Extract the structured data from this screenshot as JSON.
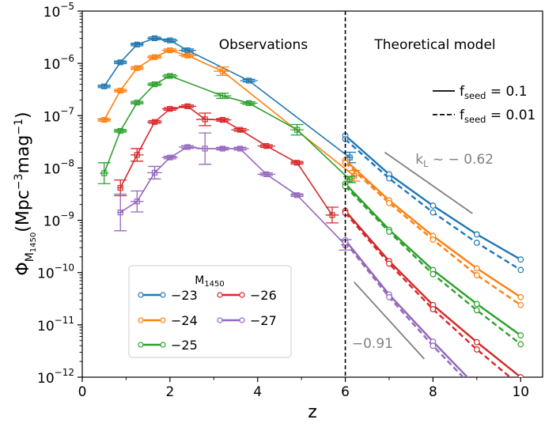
{
  "chart_data": {
    "type": "line",
    "x_label": "z",
    "y_label_base": "Φ",
    "y_label_sub": "M",
    "y_label_subsub": "1450",
    "y_label_units_prefix": "(Mpc",
    "y_label_units_exp1": "−3",
    "y_label_units_mid": "mag",
    "y_label_units_exp2": "−1",
    "y_label_units_suffix": ")",
    "xlim": [
      0,
      10.5
    ],
    "ylim_log10": [
      -12,
      -5
    ],
    "x_ticks": [
      0,
      2,
      4,
      6,
      8,
      10
    ],
    "x_tick_labels": [
      "0",
      "2",
      "4",
      "6",
      "8",
      "10"
    ],
    "y_ticks_log10": [
      -12,
      -11,
      -10,
      -9,
      -8,
      -7,
      -6,
      -5
    ],
    "y_tick_labels": [
      {
        "base": "10",
        "exp": "−12"
      },
      {
        "base": "10",
        "exp": "−11"
      },
      {
        "base": "10",
        "exp": "−10"
      },
      {
        "base": "10",
        "exp": "−9"
      },
      {
        "base": "10",
        "exp": "−8"
      },
      {
        "base": "10",
        "exp": "−7"
      },
      {
        "base": "10",
        "exp": "−6"
      },
      {
        "base": "10",
        "exp": "−5"
      }
    ],
    "divider_z": 6,
    "region_labels": {
      "left": "Observations",
      "right": "Theoretical model"
    },
    "model_legend": {
      "solid": {
        "base": "f",
        "sub": "seed",
        "value": " = 0.1"
      },
      "dashed": {
        "base": "f",
        "sub": "seed",
        "value": " = 0.01"
      }
    },
    "slope_annotations": [
      {
        "text_base": "k",
        "text_sub": "L",
        "text_value": " ~ − 0.62",
        "line": [
          [
            6.9,
            -7.7
          ],
          [
            8.9,
            -8.87
          ]
        ],
        "label_at": [
          7.6,
          -7.83
        ]
      },
      {
        "text_value": "−0.91",
        "line": [
          [
            6.2,
            -10.18
          ],
          [
            7.8,
            -11.65
          ]
        ],
        "label_at": [
          6.15,
          -11.35
        ]
      }
    ],
    "legend_title": {
      "base": "M",
      "sub": "1450"
    },
    "legend_order": [
      0,
      3,
      1,
      4,
      2
    ],
    "series": [
      {
        "name": "−23",
        "color": "#1f77b4",
        "obs": [
          {
            "z": 0.5,
            "logphi": -6.44,
            "xerr": 0.15
          },
          {
            "z": 0.87,
            "logphi": -5.98,
            "xerr": 0.15
          },
          {
            "z": 1.25,
            "logphi": -5.64,
            "xerr": 0.15
          },
          {
            "z": 1.65,
            "logphi": -5.52,
            "xerr": 0.17
          },
          {
            "z": 2.0,
            "logphi": -5.56,
            "xerr": 0.18
          },
          {
            "z": 2.4,
            "logphi": -5.75,
            "xerr": 0.2
          },
          {
            "z": 3.8,
            "logphi": -6.33,
            "xerr": 0.2
          },
          {
            "z": 6.1,
            "logphi": -7.8,
            "xerr": 0.08,
            "yerr": 0.1
          }
        ],
        "model_solid": [
          {
            "z": 6.0,
            "logphi": -7.38
          },
          {
            "z": 7.0,
            "logphi": -8.12
          },
          {
            "z": 8.0,
            "logphi": -8.72
          },
          {
            "z": 9.0,
            "logphi": -9.27
          },
          {
            "z": 10.0,
            "logphi": -9.75
          }
        ],
        "model_dashed": [
          {
            "z": 6.0,
            "logphi": -7.45
          },
          {
            "z": 7.0,
            "logphi": -8.2
          },
          {
            "z": 8.0,
            "logphi": -8.85
          },
          {
            "z": 9.0,
            "logphi": -9.43
          },
          {
            "z": 10.0,
            "logphi": -9.95
          }
        ]
      },
      {
        "name": "−24",
        "color": "#ff7f0e",
        "obs": [
          {
            "z": 0.5,
            "logphi": -7.08,
            "xerr": 0.15
          },
          {
            "z": 0.87,
            "logphi": -6.52,
            "xerr": 0.15
          },
          {
            "z": 1.25,
            "logphi": -6.09,
            "xerr": 0.15
          },
          {
            "z": 1.65,
            "logphi": -5.88,
            "xerr": 0.17
          },
          {
            "z": 2.0,
            "logphi": -5.75,
            "xerr": 0.18
          },
          {
            "z": 2.4,
            "logphi": -5.85,
            "xerr": 0.2
          },
          {
            "z": 3.2,
            "logphi": -6.15,
            "xerr": 0.2,
            "yerr": 0.08
          },
          {
            "z": 6.2,
            "logphi": -8.15,
            "xerr": 0.08,
            "yerr": 0.1
          }
        ],
        "model_solid": [
          {
            "z": 6.0,
            "logphi": -7.85
          },
          {
            "z": 7.0,
            "logphi": -8.62
          },
          {
            "z": 8.0,
            "logphi": -9.3
          },
          {
            "z": 9.0,
            "logphi": -9.92
          },
          {
            "z": 10.0,
            "logphi": -10.47
          }
        ],
        "model_dashed": [
          {
            "z": 6.0,
            "logphi": -7.9
          },
          {
            "z": 7.0,
            "logphi": -8.67
          },
          {
            "z": 8.0,
            "logphi": -9.37
          },
          {
            "z": 9.0,
            "logphi": -10.05
          },
          {
            "z": 10.0,
            "logphi": -10.62
          }
        ]
      },
      {
        "name": "−25",
        "color": "#2ca02c",
        "obs": [
          {
            "z": 0.5,
            "logphi": -8.1,
            "xerr": 0.1,
            "yerr": 0.2
          },
          {
            "z": 0.87,
            "logphi": -7.29,
            "xerr": 0.15
          },
          {
            "z": 1.25,
            "logphi": -6.75,
            "xerr": 0.15
          },
          {
            "z": 1.65,
            "logphi": -6.4,
            "xerr": 0.17
          },
          {
            "z": 2.0,
            "logphi": -6.24,
            "xerr": 0.18
          },
          {
            "z": 3.2,
            "logphi": -6.62,
            "xerr": 0.2,
            "yerr": 0.05
          },
          {
            "z": 3.8,
            "logphi": -6.76,
            "xerr": 0.2
          },
          {
            "z": 4.9,
            "logphi": -7.27,
            "xerr": 0.15,
            "yerr": 0.1
          },
          {
            "z": 6.1,
            "logphi": -8.22,
            "xerr": 0.08,
            "yerr": 0.06
          }
        ],
        "model_solid": [
          {
            "z": 6.0,
            "logphi": -8.3
          },
          {
            "z": 7.0,
            "logphi": -9.18
          },
          {
            "z": 8.0,
            "logphi": -9.95
          },
          {
            "z": 9.0,
            "logphi": -10.6
          },
          {
            "z": 10.0,
            "logphi": -11.2
          }
        ],
        "model_dashed": [
          {
            "z": 6.0,
            "logphi": -8.35
          },
          {
            "z": 7.0,
            "logphi": -9.22
          },
          {
            "z": 8.0,
            "logphi": -10.03
          },
          {
            "z": 9.0,
            "logphi": -10.72
          },
          {
            "z": 10.0,
            "logphi": -11.37
          }
        ]
      },
      {
        "name": "−26",
        "color": "#d62728",
        "obs": [
          {
            "z": 0.87,
            "logphi": -8.38,
            "xerr": 0.07,
            "yerr": 0.15
          },
          {
            "z": 1.25,
            "logphi": -7.75,
            "xerr": 0.15,
            "yerr": 0.12
          },
          {
            "z": 1.65,
            "logphi": -7.12,
            "xerr": 0.17
          },
          {
            "z": 2.0,
            "logphi": -6.87,
            "xerr": 0.18
          },
          {
            "z": 2.4,
            "logphi": -6.82,
            "xerr": 0.2
          },
          {
            "z": 2.8,
            "logphi": -7.07,
            "xerr": 0.2,
            "yerr": 0.12
          },
          {
            "z": 3.2,
            "logphi": -7.08,
            "xerr": 0.2
          },
          {
            "z": 3.6,
            "logphi": -7.27,
            "xerr": 0.2
          },
          {
            "z": 4.2,
            "logphi": -7.58,
            "xerr": 0.2
          },
          {
            "z": 4.9,
            "logphi": -7.9,
            "xerr": 0.15
          },
          {
            "z": 5.7,
            "logphi": -8.9,
            "xerr": 0.15,
            "yerr": 0.15
          }
        ],
        "model_solid": [
          {
            "z": 6.0,
            "logphi": -8.82
          },
          {
            "z": 7.0,
            "logphi": -9.78
          },
          {
            "z": 8.0,
            "logphi": -10.62
          },
          {
            "z": 9.0,
            "logphi": -11.33
          },
          {
            "z": 10.0,
            "logphi": -12.0
          }
        ],
        "model_dashed": [
          {
            "z": 6.0,
            "logphi": -8.86
          },
          {
            "z": 7.0,
            "logphi": -9.83
          },
          {
            "z": 8.0,
            "logphi": -10.7
          },
          {
            "z": 9.0,
            "logphi": -11.47
          },
          {
            "z": 9.9,
            "logphi": -12.1
          }
        ]
      },
      {
        "name": "−27",
        "color": "#9467bd",
        "obs": [
          {
            "z": 0.87,
            "logphi": -8.85,
            "xerr": 0.07,
            "yerr": 0.35
          },
          {
            "z": 1.25,
            "logphi": -8.64,
            "xerr": 0.15,
            "yerr": 0.2
          },
          {
            "z": 1.65,
            "logphi": -8.09,
            "xerr": 0.17,
            "yerr": 0.12
          },
          {
            "z": 2.0,
            "logphi": -7.8,
            "xerr": 0.18
          },
          {
            "z": 2.4,
            "logphi": -7.6,
            "xerr": 0.2
          },
          {
            "z": 2.8,
            "logphi": -7.63,
            "xerr": 0.2,
            "yerr": 0.3
          },
          {
            "z": 3.2,
            "logphi": -7.63,
            "xerr": 0.2
          },
          {
            "z": 3.6,
            "logphi": -7.63,
            "xerr": 0.2
          },
          {
            "z": 4.2,
            "logphi": -8.12,
            "xerr": 0.2
          },
          {
            "z": 4.9,
            "logphi": -8.52,
            "xerr": 0.15
          },
          {
            "z": 6.0,
            "logphi": -9.47,
            "xerr": 0.1,
            "yerr": 0.1
          }
        ],
        "model_solid": [
          {
            "z": 6.0,
            "logphi": -9.38
          },
          {
            "z": 7.0,
            "logphi": -10.42
          },
          {
            "z": 8.0,
            "logphi": -11.32
          },
          {
            "z": 8.9,
            "logphi": -12.1
          }
        ],
        "model_dashed": [
          {
            "z": 6.0,
            "logphi": -9.42
          },
          {
            "z": 7.0,
            "logphi": -10.47
          },
          {
            "z": 8.0,
            "logphi": -11.4
          },
          {
            "z": 8.8,
            "logphi": -12.1
          }
        ]
      }
    ]
  }
}
